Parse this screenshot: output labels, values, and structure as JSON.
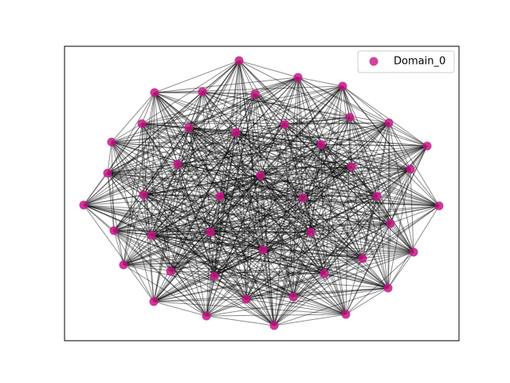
{
  "chart_data": {
    "type": "network",
    "series": [
      {
        "name": "Domain_0",
        "color": "#c71585"
      }
    ]
  }
}
